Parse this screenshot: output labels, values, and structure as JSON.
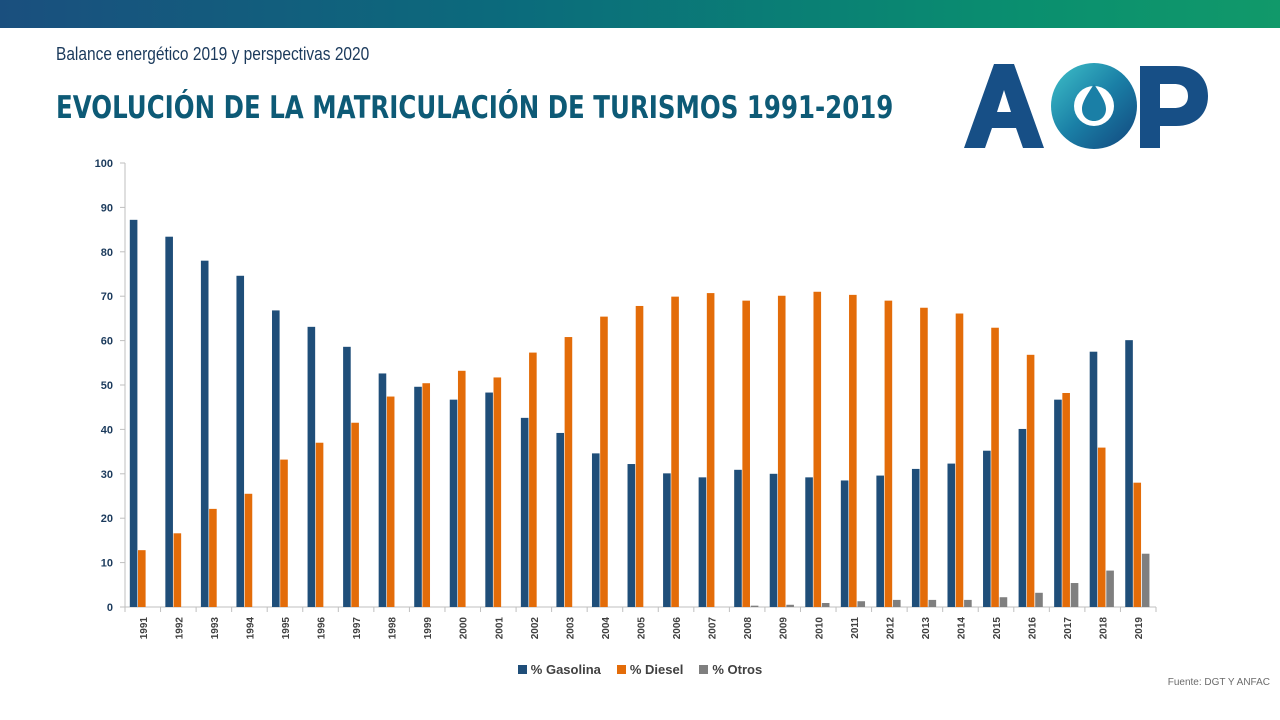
{
  "header": {
    "subtitle": "Balance energético 2019 y perspectivas 2020",
    "title": "EVOLUCIÓN DE LA MATRICULACIÓN DE TURISMOS 1991-2019",
    "logo_text": "AOP"
  },
  "source": "Fuente: DGT  Y ANFAC",
  "colors": {
    "gasolina": "#1f4e79",
    "diesel": "#e36c09",
    "otros": "#7f7f7f",
    "band": "#0b6b7c"
  },
  "chart_data": {
    "type": "bar",
    "title": "",
    "xlabel": "",
    "ylabel": "",
    "ylim": [
      0,
      100
    ],
    "yticks": [
      0,
      10,
      20,
      30,
      40,
      50,
      60,
      70,
      80,
      90,
      100
    ],
    "grid": false,
    "legend_position": "bottom",
    "categories": [
      "1991",
      "1992",
      "1993",
      "1994",
      "1995",
      "1996",
      "1997",
      "1998",
      "1999",
      "2000",
      "2001",
      "2002",
      "2003",
      "2004",
      "2005",
      "2006",
      "2007",
      "2008",
      "2009",
      "2010",
      "2011",
      "2012",
      "2013",
      "2014",
      "2015",
      "2016",
      "2017",
      "2018",
      "2019"
    ],
    "series": [
      {
        "name": "% Gasolina",
        "color": "#1f4e79",
        "values": [
          87.2,
          83.4,
          78,
          74.6,
          66.8,
          63.1,
          58.6,
          52.6,
          49.6,
          46.7,
          48.3,
          42.6,
          39.2,
          34.6,
          32.2,
          30.1,
          29.2,
          30.9,
          30,
          29.2,
          28.5,
          29.6,
          31.1,
          32.3,
          35.2,
          40.1,
          46.7,
          57.5,
          60.1
        ]
      },
      {
        "name": "% Diesel",
        "color": "#e36c09",
        "values": [
          12.8,
          16.6,
          22.1,
          25.5,
          33.2,
          37,
          41.5,
          47.4,
          50.4,
          53.2,
          51.7,
          57.3,
          60.8,
          65.4,
          67.8,
          69.9,
          70.7,
          69,
          70.1,
          71,
          70.3,
          69,
          67.4,
          66.1,
          62.9,
          56.8,
          48.2,
          35.9,
          28
        ]
      },
      {
        "name": "% Otros",
        "color": "#7f7f7f",
        "values": [
          0,
          0,
          0,
          0,
          0,
          0,
          0,
          0,
          0,
          0,
          0,
          0,
          0,
          0,
          0,
          0,
          0,
          0.3,
          0.5,
          0.9,
          1.3,
          1.6,
          1.6,
          1.6,
          2.2,
          3.2,
          5.4,
          8.2,
          12
        ]
      }
    ]
  }
}
